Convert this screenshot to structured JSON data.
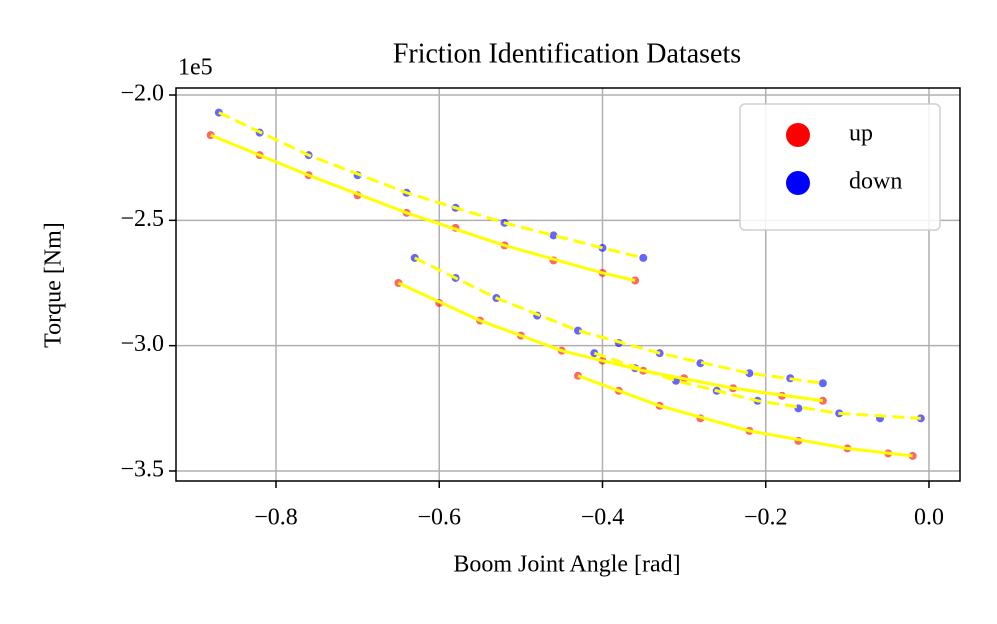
{
  "chart_data": {
    "type": "scatter",
    "title": "Friction Identification Datasets",
    "x_label": "Boom Joint Angle [rad]",
    "y_label": "Torque [Nm]",
    "y_offset_label": "1e5",
    "xlim": [
      -0.9225,
      0.038
    ],
    "ylim": [
      -354000,
      -197200
    ],
    "xticks": [
      {
        "value": -0.8,
        "label": "−0.8"
      },
      {
        "value": -0.6,
        "label": "−0.6"
      },
      {
        "value": -0.4,
        "label": "−0.4"
      },
      {
        "value": -0.2,
        "label": "−0.2"
      },
      {
        "value": 0,
        "label": "0.0"
      }
    ],
    "yticks": [
      {
        "value": -200000,
        "label": "−2.0"
      },
      {
        "value": -250000,
        "label": "−2.5"
      },
      {
        "value": -300000,
        "label": "−3.0"
      },
      {
        "value": -350000,
        "label": "−3.5"
      }
    ],
    "grid": true,
    "legend": "upper right",
    "series": [
      {
        "name": "up",
        "color": "#ff0000",
        "x": [
          -0.88,
          -0.82,
          -0.76,
          -0.7,
          -0.64,
          -0.58,
          -0.52,
          -0.46,
          -0.4,
          -0.36,
          -0.65,
          -0.6,
          -0.55,
          -0.5,
          -0.45,
          -0.4,
          -0.35,
          -0.3,
          -0.24,
          -0.18,
          -0.13,
          -0.43,
          -0.38,
          -0.33,
          -0.28,
          -0.22,
          -0.16,
          -0.1,
          -0.05,
          -0.02
        ],
        "values": [
          -216000,
          -224000,
          -232000,
          -240000,
          -247000,
          -253000,
          -260000,
          -266000,
          -271000,
          -274000,
          -275000,
          -283000,
          -290000,
          -296000,
          -302000,
          -306000,
          -310000,
          -313000,
          -317000,
          -320000,
          -322000,
          -312000,
          -318000,
          -324000,
          -329000,
          -334000,
          -338000,
          -341000,
          -343000,
          -344000
        ]
      },
      {
        "name": "down",
        "color": "#0000ff",
        "x": [
          -0.87,
          -0.82,
          -0.76,
          -0.7,
          -0.64,
          -0.58,
          -0.52,
          -0.46,
          -0.4,
          -0.35,
          -0.63,
          -0.58,
          -0.53,
          -0.48,
          -0.43,
          -0.38,
          -0.33,
          -0.28,
          -0.22,
          -0.17,
          -0.13,
          -0.41,
          -0.36,
          -0.31,
          -0.26,
          -0.21,
          -0.16,
          -0.11,
          -0.06,
          -0.01
        ],
        "values": [
          -207000,
          -215000,
          -224000,
          -232000,
          -239000,
          -245000,
          -251000,
          -256000,
          -261000,
          -265000,
          -265000,
          -273000,
          -281000,
          -288000,
          -294000,
          -299000,
          -303000,
          -307000,
          -311000,
          -313000,
          -315000,
          -303000,
          -309000,
          -314000,
          -318000,
          -322000,
          -325000,
          -327000,
          -329000,
          -329000
        ]
      }
    ],
    "fits": [
      {
        "color": "#ffff00",
        "dashed": false,
        "x": [
          -0.88,
          -0.76,
          -0.64,
          -0.52,
          -0.4,
          -0.36
        ],
        "values": [
          -216000,
          -232000,
          -247000,
          -260000,
          -271000,
          -274000
        ]
      },
      {
        "color": "#ffff00",
        "dashed": false,
        "x": [
          -0.65,
          -0.55,
          -0.45,
          -0.35,
          -0.24,
          -0.13
        ],
        "values": [
          -275000,
          -290000,
          -302000,
          -310000,
          -317000,
          -322000
        ]
      },
      {
        "color": "#ffff00",
        "dashed": false,
        "x": [
          -0.43,
          -0.33,
          -0.22,
          -0.1,
          -0.02
        ],
        "values": [
          -312000,
          -324000,
          -334000,
          -341000,
          -344000
        ]
      },
      {
        "color": "#ffff00",
        "dashed": true,
        "x": [
          -0.87,
          -0.76,
          -0.64,
          -0.52,
          -0.4,
          -0.35
        ],
        "values": [
          -207000,
          -224000,
          -239000,
          -251000,
          -261000,
          -265000
        ]
      },
      {
        "color": "#ffff00",
        "dashed": true,
        "x": [
          -0.63,
          -0.53,
          -0.43,
          -0.33,
          -0.22,
          -0.13
        ],
        "values": [
          -265000,
          -281000,
          -294000,
          -303000,
          -311000,
          -315000
        ]
      },
      {
        "color": "#ffff00",
        "dashed": true,
        "x": [
          -0.41,
          -0.31,
          -0.21,
          -0.11,
          -0.01
        ],
        "values": [
          -303000,
          -314000,
          -322000,
          -327000,
          -329000
        ]
      }
    ]
  }
}
